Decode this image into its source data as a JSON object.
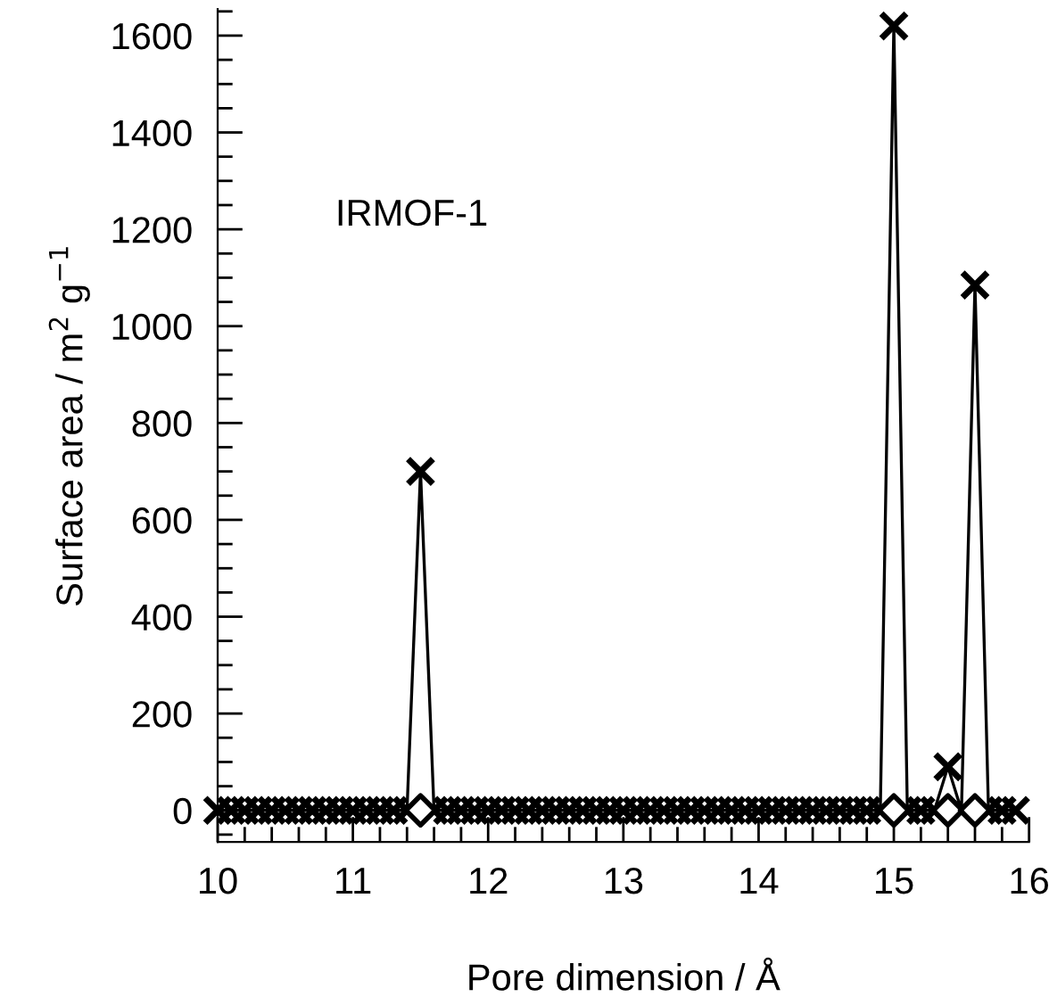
{
  "chart_data": {
    "type": "line",
    "xlabel": "Pore dimension / Å",
    "ylabel": "Surface area / m$^{2}$ g$^{−1}$",
    "annotations": [
      "IRMOF-1"
    ],
    "xlim": [
      10,
      16
    ],
    "ylim": [
      -65,
      1655
    ],
    "xticks": [
      10,
      {
        "value": 10.2,
        "label": null
      },
      {
        "value": 10.4,
        "label": null
      },
      {
        "value": 10.6,
        "label": null
      },
      {
        "value": 10.8,
        "label": null
      },
      11,
      {
        "value": 11.2,
        "label": null
      },
      {
        "value": 11.4,
        "label": null
      },
      {
        "value": 11.6,
        "label": null
      },
      {
        "value": 11.8,
        "label": null
      },
      12,
      {
        "value": 12.2,
        "label": null
      },
      {
        "value": 12.4,
        "label": null
      },
      {
        "value": 12.6,
        "label": null
      },
      {
        "value": 12.8,
        "label": null
      },
      13,
      {
        "value": 13.2,
        "label": null
      },
      {
        "value": 13.4,
        "label": null
      },
      {
        "value": 13.6,
        "label": null
      },
      {
        "value": 13.8,
        "label": null
      },
      14,
      {
        "value": 14.2,
        "label": null
      },
      {
        "value": 14.4,
        "label": null
      },
      {
        "value": 14.6,
        "label": null
      },
      {
        "value": 14.8,
        "label": null
      },
      15,
      {
        "value": 15.2,
        "label": null
      },
      {
        "value": 15.4,
        "label": null
      },
      {
        "value": 15.6,
        "label": null
      },
      {
        "value": 15.8,
        "label": null
      },
      16
    ],
    "yticks": [
      {
        "value": -50,
        "label": null
      },
      0,
      {
        "value": 50,
        "label": null
      },
      {
        "value": 100,
        "label": null
      },
      {
        "value": 150,
        "label": null
      },
      200,
      {
        "value": 250,
        "label": null
      },
      {
        "value": 300,
        "label": null
      },
      {
        "value": 350,
        "label": null
      },
      400,
      {
        "value": 450,
        "label": null
      },
      {
        "value": 500,
        "label": null
      },
      {
        "value": 550,
        "label": null
      },
      600,
      {
        "value": 650,
        "label": null
      },
      {
        "value": 700,
        "label": null
      },
      {
        "value": 750,
        "label": null
      },
      800,
      {
        "value": 850,
        "label": null
      },
      {
        "value": 900,
        "label": null
      },
      {
        "value": 950,
        "label": null
      },
      1000,
      {
        "value": 1050,
        "label": null
      },
      {
        "value": 1100,
        "label": null
      },
      {
        "value": 1150,
        "label": null
      },
      1200,
      {
        "value": 1250,
        "label": null
      },
      {
        "value": 1300,
        "label": null
      },
      {
        "value": 1350,
        "label": null
      },
      1400,
      {
        "value": 1450,
        "label": null
      },
      {
        "value": 1500,
        "label": null
      },
      {
        "value": 1550,
        "label": null
      },
      1600,
      {
        "value": 1650,
        "label": null
      }
    ],
    "grid": false,
    "series": [
      {
        "color": "#000000",
        "marker": "cross",
        "line_style": "solid",
        "x": [
          10.0,
          10.1,
          10.2,
          10.3,
          10.4,
          10.5,
          10.6,
          10.7,
          10.8,
          10.9,
          11.0,
          11.1,
          11.2,
          11.3,
          11.4,
          11.5,
          11.6,
          11.7,
          11.8,
          11.9,
          12.0,
          12.1,
          12.2,
          12.3,
          12.4,
          12.5,
          12.6,
          12.7,
          12.8,
          12.9,
          13.0,
          13.1,
          13.2,
          13.3,
          13.4,
          13.5,
          13.6,
          13.7,
          13.8,
          13.9,
          14.0,
          14.1,
          14.2,
          14.3,
          14.4,
          14.5,
          14.6,
          14.7,
          14.8,
          14.9,
          15.0,
          15.1,
          15.2,
          15.3,
          15.4,
          15.5,
          15.6,
          15.7,
          15.8,
          15.9
        ],
        "values": [
          0,
          0,
          0,
          0,
          0,
          0,
          0,
          0,
          0,
          0,
          0,
          0,
          0,
          0,
          0,
          700,
          0,
          0,
          0,
          0,
          0,
          0,
          0,
          0,
          0,
          0,
          0,
          0,
          0,
          0,
          0,
          0,
          0,
          0,
          0,
          0,
          0,
          0,
          0,
          0,
          0,
          0,
          0,
          0,
          0,
          0,
          0,
          0,
          0,
          0,
          1620,
          0,
          0,
          0,
          90,
          0,
          1085,
          0,
          0,
          0
        ]
      },
      {
        "type": "scatter",
        "color": "#000000",
        "marker": "diamond",
        "x": [
          11.5,
          15.0,
          15.4,
          15.6
        ],
        "values": [
          0,
          0,
          0,
          0
        ]
      }
    ]
  }
}
